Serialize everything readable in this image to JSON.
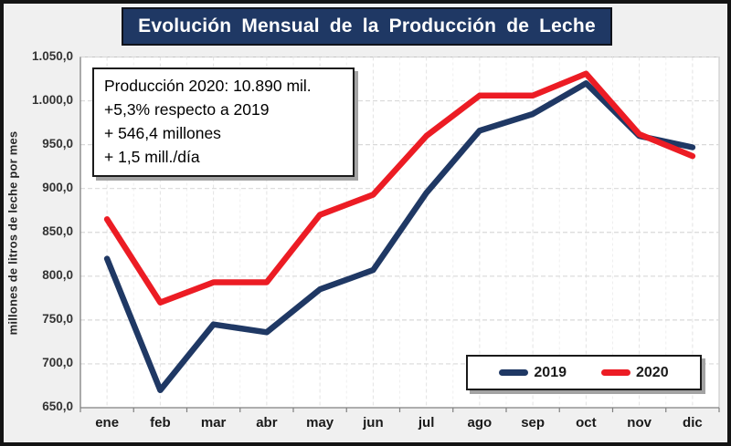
{
  "title": "Evolución Mensual de la Producción de Leche",
  "annotation": {
    "lines": [
      "Producción 2020: 10.890 mil.",
      "+5,3% respecto a 2019",
      "+ 546,4 millones",
      "+ 1,5 mill./día"
    ]
  },
  "legend": {
    "items": [
      {
        "label": "2019",
        "color": "#1F3864"
      },
      {
        "label": "2020",
        "color": "#EC1C24"
      }
    ]
  },
  "chart_data": {
    "type": "line",
    "title": "Evolución Mensual de la Producción de Leche",
    "ylabel": "millones de litros de leche por mes",
    "categories": [
      "ene",
      "feb",
      "mar",
      "abr",
      "may",
      "jun",
      "jul",
      "ago",
      "sep",
      "oct",
      "nov",
      "dic"
    ],
    "series": [
      {
        "name": "2019",
        "color": "#1F3864",
        "values": [
          820,
          670,
          745,
          736,
          785,
          807,
          895,
          966,
          985,
          1020,
          960,
          947
        ]
      },
      {
        "name": "2020",
        "color": "#EC1C24",
        "values": [
          865,
          770,
          793,
          793,
          870,
          893,
          960,
          1006,
          1006,
          1031,
          962,
          937
        ]
      }
    ],
    "ylim": [
      650,
      1050
    ],
    "y_tick_step": 50,
    "y_tick_labels": [
      "650,0",
      "700,0",
      "750,0",
      "800,0",
      "850,0",
      "900,0",
      "950,0",
      "1.000,0",
      "1.050,0"
    ],
    "grid": "dashed",
    "legend_position": "bottom-right"
  },
  "colors": {
    "background": "#F0F0F0",
    "plot_background": "#FFFFFF",
    "title_background": "#1F3864",
    "title_text": "#FFFFFF",
    "gridline": "#D9D9D9",
    "axis": "#808080",
    "frame_border": "#141414"
  }
}
